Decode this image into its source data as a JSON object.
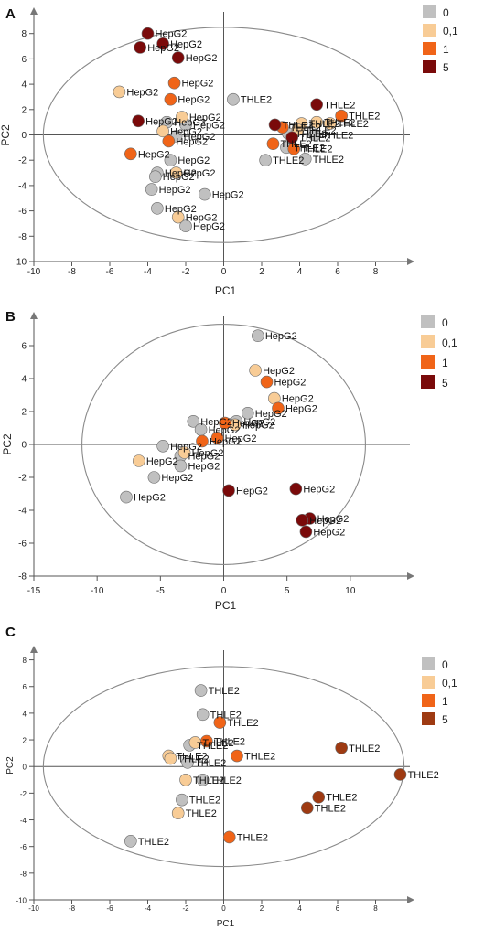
{
  "chart_data": [
    {
      "panel": "A",
      "type": "scatter",
      "xlabel": "PC1",
      "ylabel": "PC2",
      "xlim": [
        -10,
        10
      ],
      "ylim": [
        -10,
        10
      ],
      "xticks": [
        -10,
        -8,
        -6,
        -4,
        -2,
        0,
        2,
        4,
        6,
        8
      ],
      "yticks": [
        -10,
        -8,
        -6,
        -4,
        -2,
        0,
        2,
        4,
        6,
        8
      ],
      "ellipse": {
        "cx": 0,
        "cy": 0,
        "rx": 9.5,
        "ry": 8.5
      },
      "legend": [
        {
          "label": "0",
          "color": "#c0c0c0"
        },
        {
          "label": "0,1",
          "color": "#f8cc96"
        },
        {
          "label": "1",
          "color": "#f06418"
        },
        {
          "label": "5",
          "color": "#7a0a0a"
        }
      ],
      "series": [
        {
          "name": "0",
          "color": "#c0c0c0",
          "points": [
            {
              "x": 0.5,
              "y": 2.8,
              "label": "THLE2"
            },
            {
              "x": -3.0,
              "y": 1.0,
              "label": "HepG2"
            },
            {
              "x": -2.0,
              "y": 0.8,
              "label": "HepG2"
            },
            {
              "x": -2.5,
              "y": -0.1,
              "label": "HepG2"
            },
            {
              "x": -2.8,
              "y": -2.0,
              "label": "HepG2"
            },
            {
              "x": -3.5,
              "y": -3.0,
              "label": "HepG2"
            },
            {
              "x": -3.6,
              "y": -3.3,
              "label": "HepG2"
            },
            {
              "x": -3.8,
              "y": -4.3,
              "label": "HepG2"
            },
            {
              "x": -1.0,
              "y": -4.7,
              "label": "HepG2"
            },
            {
              "x": -3.5,
              "y": -5.8,
              "label": "HepG2"
            },
            {
              "x": -2.0,
              "y": -7.2,
              "label": "HepG2"
            },
            {
              "x": 3.4,
              "y": 0.1,
              "label": "THLE2"
            },
            {
              "x": 2.2,
              "y": -2.0,
              "label": "THLE2"
            },
            {
              "x": 4.8,
              "y": 0.0,
              "label": "THLE2"
            },
            {
              "x": 4.3,
              "y": -1.9,
              "label": "THLE2"
            },
            {
              "x": 3.3,
              "y": -1.0,
              "label": "THLE2"
            }
          ]
        },
        {
          "name": "0,1",
          "color": "#f8cc96",
          "points": [
            {
              "x": -5.5,
              "y": 3.4,
              "label": "HepG2"
            },
            {
              "x": -2.2,
              "y": 1.4,
              "label": "HepG2"
            },
            {
              "x": -3.2,
              "y": 0.3,
              "label": "HepG2"
            },
            {
              "x": -2.5,
              "y": -3.0,
              "label": "HepG2"
            },
            {
              "x": -2.4,
              "y": -6.5,
              "label": "HepG2"
            },
            {
              "x": 4.1,
              "y": 0.9,
              "label": "THLE2"
            },
            {
              "x": 4.9,
              "y": 1.0,
              "label": "THLE2"
            },
            {
              "x": 5.6,
              "y": 0.9,
              "label": "THLE2"
            },
            {
              "x": 3.9,
              "y": 0.4,
              "label": "THLE2"
            }
          ]
        },
        {
          "name": "1",
          "color": "#f06418",
          "points": [
            {
              "x": -2.6,
              "y": 4.1,
              "label": "HepG2"
            },
            {
              "x": -2.8,
              "y": 2.8,
              "label": "HepG2"
            },
            {
              "x": -2.9,
              "y": -0.5,
              "label": "HepG2"
            },
            {
              "x": -4.9,
              "y": -1.5,
              "label": "HepG2"
            },
            {
              "x": 2.6,
              "y": -0.7,
              "label": "THLE2"
            },
            {
              "x": 3.1,
              "y": 0.6,
              "label": "THLE2"
            },
            {
              "x": 3.7,
              "y": -1.1,
              "label": "THLE2"
            },
            {
              "x": 6.2,
              "y": 1.5,
              "label": "THLE2"
            }
          ]
        },
        {
          "name": "5",
          "color": "#7a0a0a",
          "points": [
            {
              "x": -4.0,
              "y": 8.0,
              "label": "HepG2"
            },
            {
              "x": -3.2,
              "y": 7.2,
              "label": "HepG2"
            },
            {
              "x": -4.4,
              "y": 6.9,
              "label": "HepG2"
            },
            {
              "x": -2.4,
              "y": 6.1,
              "label": "HepG2"
            },
            {
              "x": -4.5,
              "y": 1.1,
              "label": "HepG2"
            },
            {
              "x": 2.7,
              "y": 0.8,
              "label": "THLE2"
            },
            {
              "x": 4.9,
              "y": 2.4,
              "label": "THLE2"
            },
            {
              "x": 3.6,
              "y": -0.2,
              "label": "THLE2"
            }
          ]
        }
      ]
    },
    {
      "panel": "B",
      "type": "scatter",
      "xlabel": "PC1",
      "ylabel": "PC2",
      "xlim": [
        -15,
        15
      ],
      "ylim": [
        -8,
        8
      ],
      "xticks": [
        -15,
        -10,
        -5,
        0,
        5,
        10
      ],
      "yticks": [
        -8,
        -6,
        -4,
        -2,
        0,
        2,
        4,
        6
      ],
      "ellipse": {
        "cx": 0,
        "cy": 0,
        "rx": 11.2,
        "ry": 7.3
      },
      "legend": [
        {
          "label": "0",
          "color": "#c0c0c0"
        },
        {
          "label": "0,1",
          "color": "#f8cc96"
        },
        {
          "label": "1",
          "color": "#f06418"
        },
        {
          "label": "5",
          "color": "#7a0a0a"
        }
      ],
      "series": [
        {
          "name": "0",
          "color": "#c0c0c0",
          "points": [
            {
              "x": 2.7,
              "y": 6.6,
              "label": "HepG2"
            },
            {
              "x": 1.9,
              "y": 1.9,
              "label": "HepG2"
            },
            {
              "x": 1.0,
              "y": 1.4,
              "label": "HepG2"
            },
            {
              "x": -2.4,
              "y": 1.4,
              "label": "HepG2"
            },
            {
              "x": -1.8,
              "y": 0.9,
              "label": "HepG2"
            },
            {
              "x": -4.8,
              "y": -0.1,
              "label": "HepG2"
            },
            {
              "x": -3.4,
              "y": -0.7,
              "label": "HepG2"
            },
            {
              "x": -3.4,
              "y": -1.3,
              "label": "HepG2"
            },
            {
              "x": -5.5,
              "y": -2.0,
              "label": "HepG2"
            },
            {
              "x": -7.7,
              "y": -3.2,
              "label": "HepG2"
            }
          ]
        },
        {
          "name": "0,1",
          "color": "#f8cc96",
          "points": [
            {
              "x": 2.5,
              "y": 4.5,
              "label": "HepG2"
            },
            {
              "x": 4.0,
              "y": 2.8,
              "label": "HepG2"
            },
            {
              "x": 0.9,
              "y": 1.2,
              "label": "HepG2"
            },
            {
              "x": -3.1,
              "y": -0.5,
              "label": "HepG2"
            },
            {
              "x": -6.7,
              "y": -1.0,
              "label": "HepG2"
            }
          ]
        },
        {
          "name": "1",
          "color": "#f06418",
          "points": [
            {
              "x": 3.4,
              "y": 3.8,
              "label": "HepG2"
            },
            {
              "x": 4.3,
              "y": 2.2,
              "label": "HepG2"
            },
            {
              "x": 0.1,
              "y": 1.3,
              "label": "HepG2"
            },
            {
              "x": -0.5,
              "y": 0.4,
              "label": "HepG2"
            },
            {
              "x": -1.7,
              "y": 0.2,
              "label": "HepG2"
            }
          ]
        },
        {
          "name": "5",
          "color": "#7a0a0a",
          "points": [
            {
              "x": 0.4,
              "y": -2.8,
              "label": "HepG2"
            },
            {
              "x": 5.7,
              "y": -2.7,
              "label": "HepG2"
            },
            {
              "x": 6.8,
              "y": -4.5,
              "label": "HepG2"
            },
            {
              "x": 6.2,
              "y": -4.6,
              "label": "HepG2"
            },
            {
              "x": 6.5,
              "y": -5.3,
              "label": "HepG2"
            }
          ]
        }
      ]
    },
    {
      "panel": "C",
      "type": "scatter",
      "xlabel": "PC1",
      "ylabel": "PC2",
      "xlim": [
        -10,
        10
      ],
      "ylim": [
        -10,
        9
      ],
      "xticks": [
        -10,
        -8,
        -6,
        -4,
        -2,
        0,
        2,
        4,
        6,
        8
      ],
      "yticks": [
        -10,
        -8,
        -6,
        -4,
        -2,
        0,
        2,
        4,
        6,
        8
      ],
      "ellipse": {
        "cx": 0,
        "cy": 0,
        "rx": 9.5,
        "ry": 7.5
      },
      "legend": [
        {
          "label": "0",
          "color": "#c0c0c0"
        },
        {
          "label": "0,1",
          "color": "#f8cc96"
        },
        {
          "label": "1",
          "color": "#f06418"
        },
        {
          "label": "5",
          "color": "#9e3a12"
        }
      ],
      "series": [
        {
          "name": "0",
          "color": "#c0c0c0",
          "points": [
            {
              "x": -1.2,
              "y": 5.7,
              "label": "THLE2"
            },
            {
              "x": -1.1,
              "y": 3.9,
              "label": "THLE2"
            },
            {
              "x": -1.8,
              "y": 1.6,
              "label": "THLE2"
            },
            {
              "x": -1.9,
              "y": 0.3,
              "label": "THLE2"
            },
            {
              "x": -1.1,
              "y": -1.0,
              "label": "THLE2"
            },
            {
              "x": -2.2,
              "y": -2.5,
              "label": "THLE2"
            },
            {
              "x": -4.9,
              "y": -5.6,
              "label": "THLE2"
            }
          ]
        },
        {
          "name": "0,1",
          "color": "#f8cc96",
          "points": [
            {
              "x": -1.5,
              "y": 1.8,
              "label": "THLE2"
            },
            {
              "x": -2.9,
              "y": 0.8,
              "label": "THLE2"
            },
            {
              "x": -2.0,
              "y": -1.0,
              "label": "THLE2"
            },
            {
              "x": -2.4,
              "y": -3.5,
              "label": "THLE2"
            },
            {
              "x": -2.8,
              "y": 0.6,
              "label": "THLE2"
            }
          ]
        },
        {
          "name": "1",
          "color": "#f06418",
          "points": [
            {
              "x": -0.2,
              "y": 3.3,
              "label": "THLE2"
            },
            {
              "x": -0.9,
              "y": 1.9,
              "label": "THLE2"
            },
            {
              "x": 0.7,
              "y": 0.8,
              "label": "THLE2"
            },
            {
              "x": 0.3,
              "y": -5.3,
              "label": "THLE2"
            }
          ]
        },
        {
          "name": "5",
          "color": "#9e3a12",
          "points": [
            {
              "x": 6.2,
              "y": 1.4,
              "label": "THLE2"
            },
            {
              "x": 9.3,
              "y": -0.6,
              "label": "THLE2"
            },
            {
              "x": 5.0,
              "y": -2.3,
              "label": "THLE2"
            },
            {
              "x": 4.4,
              "y": -3.1,
              "label": "THLE2"
            }
          ]
        }
      ]
    }
  ]
}
